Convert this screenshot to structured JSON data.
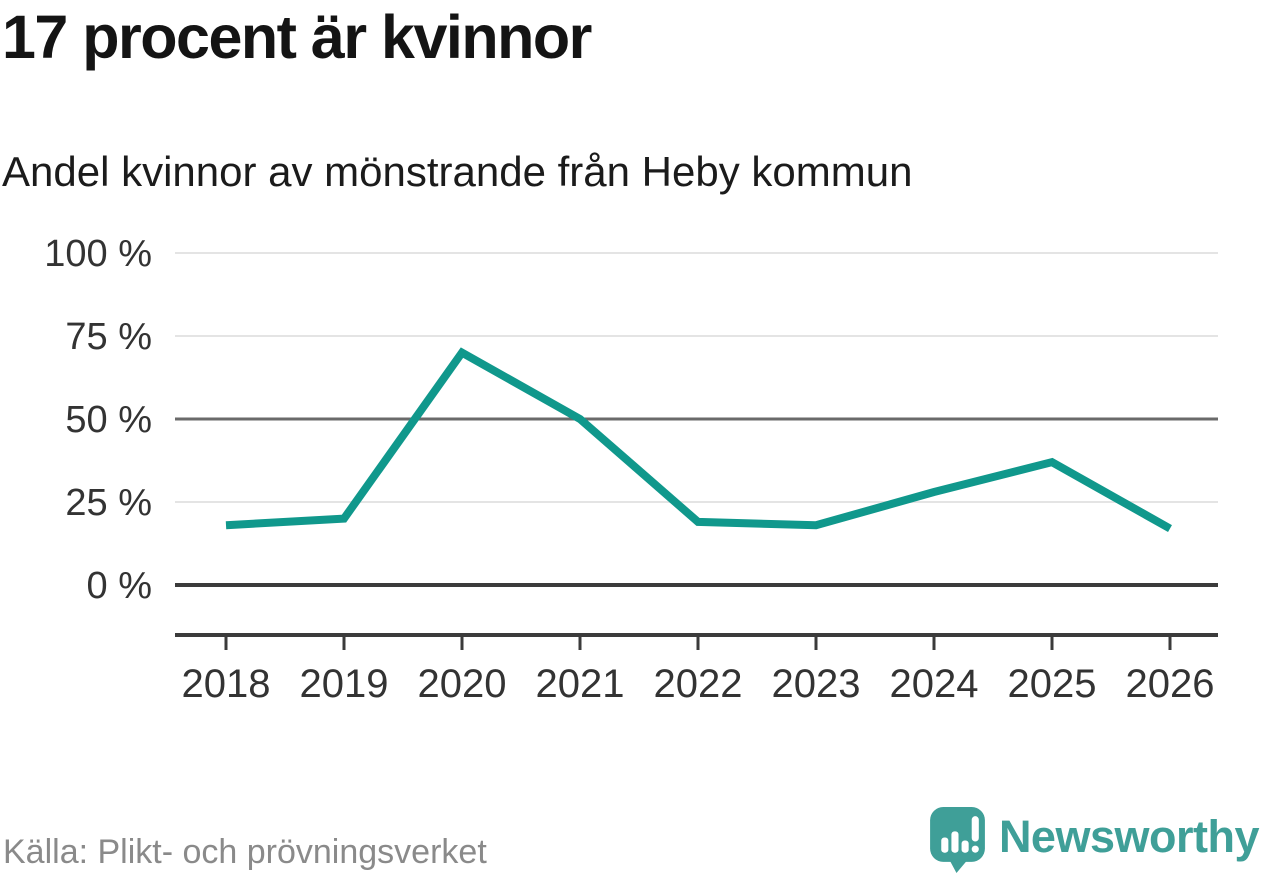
{
  "header": {
    "title": "17 procent är kvinnor",
    "subtitle": "Andel kvinnor av mönstrande från Heby kommun"
  },
  "chart_data": {
    "type": "line",
    "title": "17 procent är kvinnor",
    "subtitle": "Andel kvinnor av mönstrande från Heby kommun",
    "x": [
      "2018",
      "2019",
      "2020",
      "2021",
      "2022",
      "2023",
      "2024",
      "2025",
      "2026"
    ],
    "series": [
      {
        "name": "Andel kvinnor av mönstrande",
        "color": "#10988c",
        "values": [
          18,
          20,
          70,
          50,
          19,
          18,
          28,
          37,
          17
        ]
      }
    ],
    "xlabel": "",
    "ylabel": "",
    "ylim": [
      0,
      100
    ],
    "yticks": [
      100,
      75,
      50,
      25,
      0
    ],
    "ytick_suffix": " %",
    "grid": "horizontal",
    "emphasized_gridlines": [
      50,
      0
    ],
    "legend": "none",
    "markers": "none"
  },
  "footer": {
    "source": "Källa: Plikt- och prövningsverket",
    "brand": "Newsworthy"
  },
  "colors": {
    "accent_teal": "#10988c",
    "brand_teal": "#3f9f98",
    "grid_light": "#e4e4e4",
    "grid_mid": "#6a6a6a",
    "axis_dark": "#3b3b3b",
    "text_dark": "#141414",
    "text_axis": "#333333",
    "text_muted": "#8a8a8a"
  }
}
